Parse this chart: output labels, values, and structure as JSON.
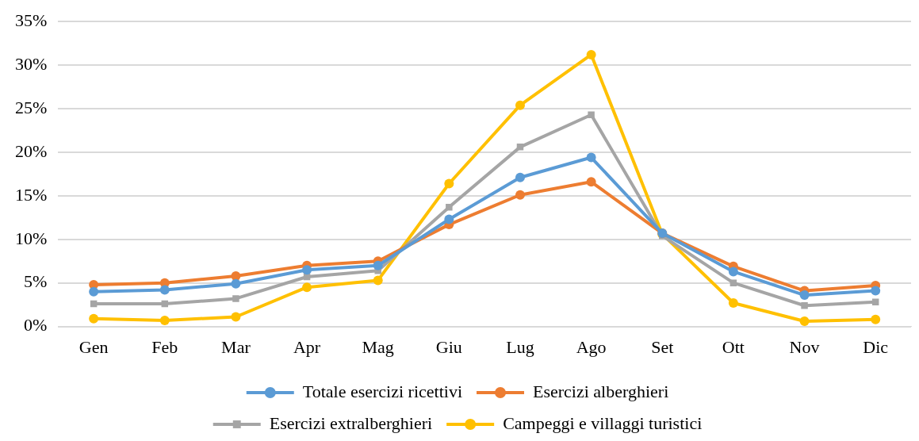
{
  "chart_data": {
    "type": "line",
    "categories": [
      "Gen",
      "Feb",
      "Mar",
      "Apr",
      "Mag",
      "Giu",
      "Lug",
      "Ago",
      "Set",
      "Ott",
      "Nov",
      "Dic"
    ],
    "series": [
      {
        "name": "Totale esercizi ricettivi",
        "color": "#5b9bd5",
        "marker": "circle",
        "values": [
          4.0,
          4.2,
          4.9,
          6.5,
          7.0,
          12.3,
          17.1,
          19.4,
          10.7,
          6.3,
          3.6,
          4.1
        ]
      },
      {
        "name": "Esercizi alberghieri",
        "color": "#ed7d31",
        "marker": "circle",
        "values": [
          4.8,
          5.0,
          5.8,
          7.0,
          7.5,
          11.7,
          15.1,
          16.6,
          10.7,
          6.9,
          4.1,
          4.7
        ]
      },
      {
        "name": "Esercizi extralberghieri",
        "color": "#a5a5a5",
        "marker": "square",
        "values": [
          2.6,
          2.6,
          3.2,
          5.7,
          6.4,
          13.7,
          20.6,
          24.3,
          10.4,
          5.0,
          2.4,
          2.8
        ]
      },
      {
        "name": "Campeggi e villaggi turistici",
        "color": "#ffc000",
        "marker": "circle",
        "values": [
          0.9,
          0.7,
          1.1,
          4.5,
          5.3,
          16.4,
          25.4,
          31.2,
          10.6,
          2.7,
          0.6,
          0.8
        ]
      }
    ],
    "ylim": [
      0,
      35
    ],
    "yticks": [
      {
        "value": 0,
        "label": "0%"
      },
      {
        "value": 5,
        "label": "5%"
      },
      {
        "value": 10,
        "label": "10%"
      },
      {
        "value": 15,
        "label": "15%"
      },
      {
        "value": 20,
        "label": "20%"
      },
      {
        "value": 25,
        "label": "25%"
      },
      {
        "value": 30,
        "label": "30%"
      },
      {
        "value": 35,
        "label": "35%"
      }
    ],
    "grid": "y",
    "legend": "bottom",
    "line_style": "solid"
  }
}
